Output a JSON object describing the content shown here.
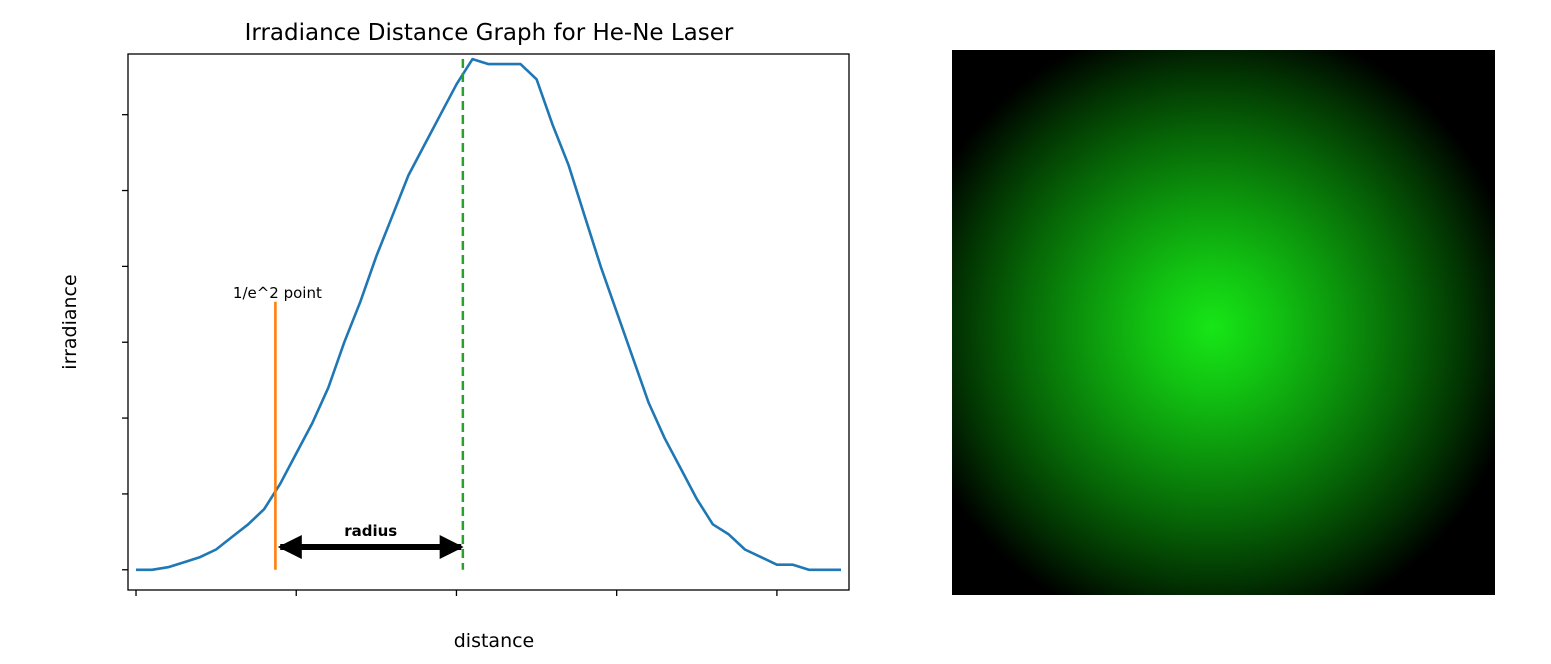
{
  "chart_data": {
    "type": "line",
    "title": "Irradiance Distance Graph for He-Ne Laser",
    "xlabel": "distance",
    "ylabel": "irradiance",
    "xlim": [
      -5,
      445
    ],
    "ylim": [
      -4,
      102
    ],
    "grid": false,
    "series": [
      {
        "color": "#1f77b4",
        "x": [
          0,
          10,
          20,
          30,
          40,
          50,
          60,
          70,
          80,
          90,
          100,
          110,
          120,
          130,
          140,
          150,
          160,
          170,
          180,
          190,
          200,
          210,
          220,
          230,
          240,
          250,
          260,
          270,
          280,
          290,
          300,
          310,
          320,
          330,
          340,
          350,
          360,
          370,
          380,
          390,
          400,
          410,
          420,
          430,
          440
        ],
        "y": [
          0,
          0,
          0.5,
          1.5,
          2.5,
          4,
          6.5,
          9,
          12,
          17,
          23,
          29,
          36,
          45,
          53,
          62,
          70,
          78,
          84,
          90,
          96,
          101,
          100,
          100,
          100,
          97,
          88,
          80,
          70,
          60,
          51,
          42,
          33,
          26,
          20,
          14,
          9,
          7,
          4,
          2.5,
          1,
          1,
          0,
          0,
          0
        ]
      }
    ],
    "peak": {
      "x": 204,
      "color": "#2ca02c"
    },
    "threshold_line": {
      "x": 87,
      "y_top": 53,
      "label": "1/e^2 point",
      "color": "#ff7f0e"
    },
    "radius_arrow": {
      "x_from": 90,
      "x_to": 203,
      "y": 4.5,
      "label": "radius"
    }
  },
  "image_panel": {
    "colors": [
      "#17e617",
      "#000000"
    ]
  }
}
